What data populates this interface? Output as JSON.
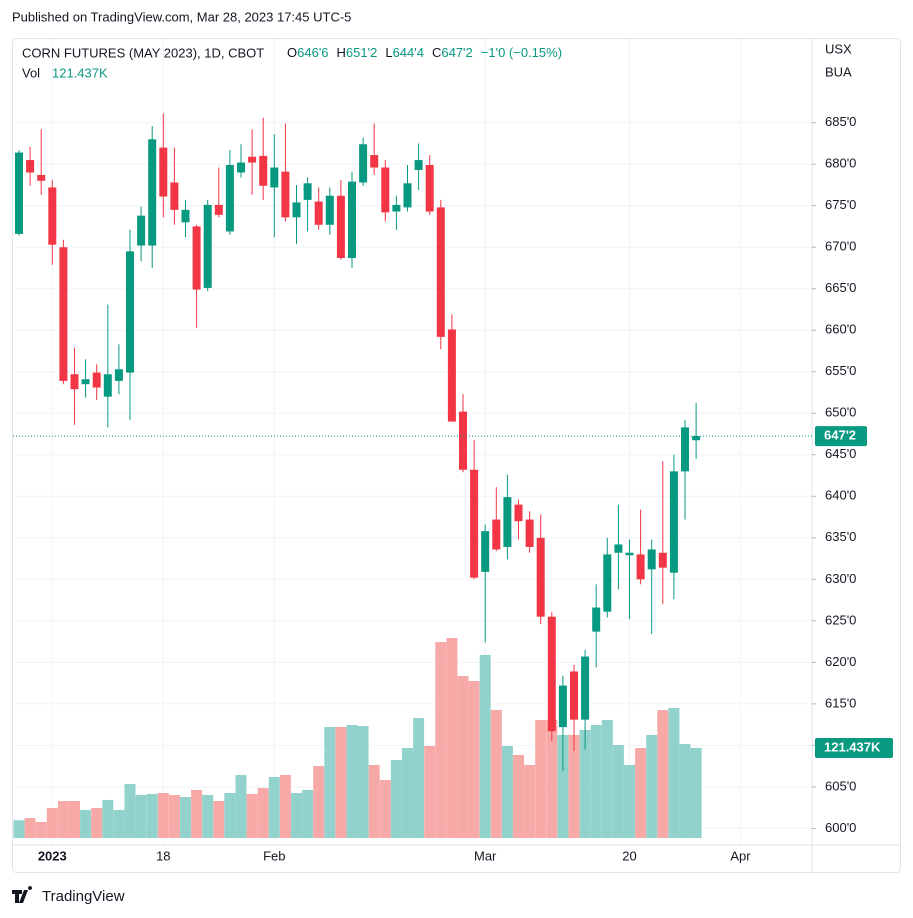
{
  "header": {
    "published": "Published on TradingView.com, Mar 28, 2023 17:45 UTC-5",
    "symbol": "CORN FUTURES (MAY 2023), 1D, CBOT",
    "ohlc": [
      {
        "key": "O",
        "value": "646'6"
      },
      {
        "key": "H",
        "value": "651'2"
      },
      {
        "key": "L",
        "value": "644'4"
      },
      {
        "key": "C",
        "value": "647'2"
      }
    ],
    "change": "−1'0 (−0.15%)",
    "vol_key": "Vol",
    "vol_value": "121.437K",
    "currency": "USX",
    "unit": "BUA"
  },
  "footer": {
    "brand": "TradingView"
  },
  "chart_data": {
    "type": "candlestick",
    "categories": [
      null,
      null,
      null,
      "2023",
      null,
      null,
      null,
      null,
      null,
      null,
      null,
      null,
      null,
      "18",
      null,
      null,
      null,
      null,
      null,
      null,
      null,
      null,
      null,
      "Feb",
      null,
      null,
      null,
      null,
      null,
      null,
      null,
      null,
      null,
      null,
      null,
      null,
      null,
      null,
      null,
      null,
      null,
      null,
      "Mar",
      null,
      null,
      null,
      null,
      null,
      null,
      null,
      null,
      null,
      null,
      null,
      null,
      "20",
      null,
      null,
      null,
      null,
      null,
      null,
      null,
      null,
      null,
      "Apr"
    ],
    "open": [
      671.6,
      680.5,
      678.7,
      677.2,
      670.0,
      654.7,
      653.5,
      654.9,
      652.0,
      653.9,
      654.9,
      670.2,
      670.2,
      682.0,
      677.8,
      673.0,
      672.5,
      665.1,
      675.1,
      671.9,
      679.0,
      680.9,
      681.0,
      677.2,
      679.1,
      673.6,
      675.7,
      675.5,
      672.7,
      676.2,
      668.7,
      677.8,
      681.1,
      679.6,
      674.3,
      674.8,
      679.3,
      679.9,
      674.8,
      660.1,
      650.2,
      643.2,
      630.9,
      637.2,
      633.9,
      639.0,
      637.2,
      635.0,
      625.5,
      612.2,
      618.9,
      613.1,
      623.7,
      626.1,
      633.2,
      632.9,
      633.0,
      631.2,
      633.2,
      630.8,
      643.0,
      646.75,
      null,
      null,
      null,
      null
    ],
    "high": [
      681.7,
      682.1,
      684.2,
      678.1,
      670.9,
      657.9,
      656.5,
      655.9,
      663.1,
      658.3,
      672.1,
      674.9,
      684.6,
      686.1,
      682.0,
      675.7,
      672.7,
      675.7,
      679.6,
      681.7,
      682.4,
      684.2,
      685.6,
      683.6,
      684.9,
      677.5,
      678.4,
      677.2,
      677.2,
      678.1,
      679.1,
      683.2,
      684.9,
      680.5,
      676.2,
      679.9,
      682.5,
      681.1,
      675.7,
      661.9,
      652.3,
      646.8,
      636.6,
      641.1,
      642.6,
      639.6,
      638.2,
      637.8,
      626.1,
      618.4,
      619.7,
      621.5,
      629.4,
      635.0,
      639.0,
      634.8,
      638.4,
      634.8,
      644.2,
      645.0,
      649.2,
      651.25,
      null,
      null,
      null,
      null
    ],
    "low": [
      671.4,
      677.4,
      676.3,
      667.9,
      653.5,
      648.6,
      651.9,
      651.6,
      648.3,
      652.3,
      649.2,
      668.3,
      667.5,
      673.6,
      672.7,
      671.2,
      660.3,
      664.7,
      673.6,
      671.5,
      678.4,
      676.3,
      675.7,
      671.2,
      673.1,
      670.4,
      671.9,
      672.1,
      671.5,
      668.5,
      667.5,
      677.4,
      678.7,
      673.1,
      672.1,
      674.3,
      676.9,
      673.9,
      657.7,
      649.0,
      642.9,
      630.0,
      622.4,
      633.4,
      632.4,
      634.8,
      633.2,
      624.6,
      610.5,
      606.9,
      609.3,
      609.5,
      619.4,
      625.4,
      628.8,
      625.2,
      629.4,
      623.4,
      627.0,
      627.6,
      637.2,
      644.5,
      null,
      null,
      null,
      null
    ],
    "close": [
      681.4,
      679.0,
      678.0,
      670.3,
      653.9,
      652.9,
      654.1,
      653.1,
      654.7,
      655.3,
      669.5,
      673.8,
      683.0,
      676.1,
      674.5,
      674.5,
      664.9,
      675.1,
      673.9,
      679.9,
      680.2,
      680.2,
      677.4,
      679.6,
      673.6,
      675.4,
      677.7,
      672.7,
      676.2,
      668.7,
      677.9,
      682.4,
      679.6,
      674.2,
      675.1,
      677.7,
      680.5,
      674.3,
      659.2,
      649.0,
      643.2,
      630.2,
      635.8,
      633.6,
      639.9,
      637.0,
      633.9,
      625.5,
      611.7,
      617.2,
      613.1,
      620.7,
      626.6,
      633.0,
      634.2,
      633.2,
      630.0,
      633.6,
      631.4,
      643.0,
      648.3,
      647.25,
      null,
      null,
      null,
      null
    ],
    "volume": [
      24000,
      27000,
      21600,
      40500,
      49900,
      49900,
      37800,
      40500,
      51300,
      37800,
      72800,
      58000,
      59400,
      60700,
      58000,
      55300,
      64800,
      58000,
      49900,
      60700,
      85000,
      59400,
      67500,
      82300,
      85000,
      60700,
      64800,
      97100,
      149700,
      149700,
      152400,
      151100,
      98500,
      78200,
      105200,
      121400,
      161900,
      124100,
      264400,
      269800,
      218500,
      211800,
      246900,
      172700,
      124100,
      112000,
      98500,
      159200,
      159200,
      139000,
      139000,
      145700,
      152400,
      159200,
      125500,
      98500,
      121400,
      139000,
      172700,
      175400,
      126800,
      121437,
      null,
      null,
      null,
      null
    ],
    "up_color": "#089981",
    "down_color": "#f23645",
    "up_volume_color": "#92d2cc",
    "down_volume_color": "#f7a9a7",
    "last_price": {
      "value": 647.25,
      "label": "647'2"
    },
    "last_volume_label": "121.437K",
    "ylim": [
      598,
      695.2
    ],
    "yticks": [
      {
        "value": 600,
        "label": "600'0"
      },
      {
        "value": 605,
        "label": "605'0"
      },
      {
        "value": 610,
        "label": "610'0"
      },
      {
        "value": 615,
        "label": "615'0"
      },
      {
        "value": 620,
        "label": "620'0"
      },
      {
        "value": 625,
        "label": "625'0"
      },
      {
        "value": 630,
        "label": "630'0"
      },
      {
        "value": 635,
        "label": "635'0"
      },
      {
        "value": 640,
        "label": "640'0"
      },
      {
        "value": 645,
        "label": "645'0"
      },
      {
        "value": 650,
        "label": "650'0"
      },
      {
        "value": 655,
        "label": "655'0"
      },
      {
        "value": 660,
        "label": "660'0"
      },
      {
        "value": 665,
        "label": "665'0"
      },
      {
        "value": 670,
        "label": "670'0"
      },
      {
        "value": 675,
        "label": "675'0"
      },
      {
        "value": 680,
        "label": "680'0"
      },
      {
        "value": 685,
        "label": "685'0"
      }
    ],
    "grid": true
  }
}
